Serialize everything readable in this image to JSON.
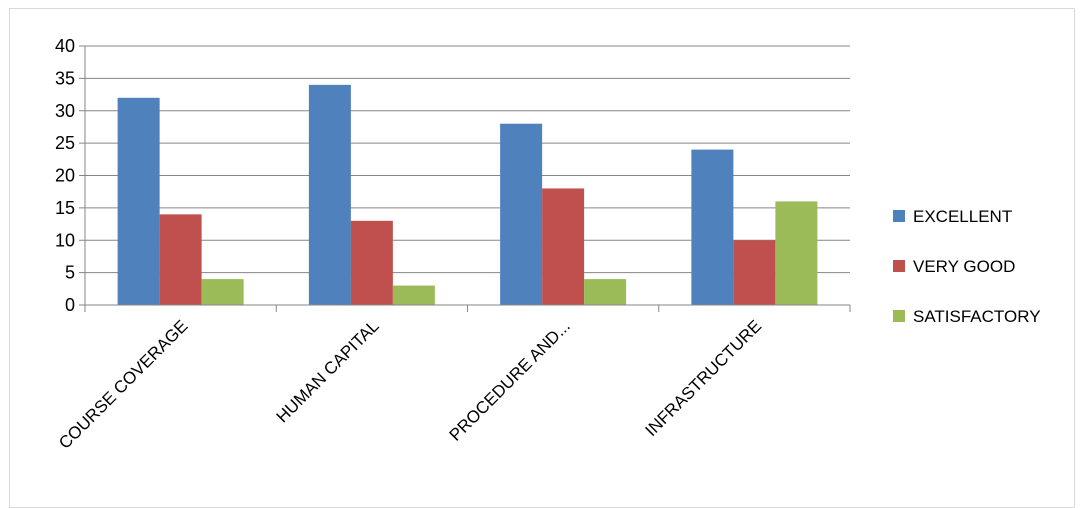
{
  "chart_data": {
    "type": "bar",
    "title": "",
    "xlabel": "",
    "ylabel": "",
    "categories": [
      "COURSE COVERAGE",
      "HUMAN CAPITAL",
      "PROCEDURE AND...",
      "INFRASTRUCTURE"
    ],
    "series": [
      {
        "name": "EXCELLENT",
        "color": "#4F81BD",
        "values": [
          32,
          34,
          28,
          24
        ]
      },
      {
        "name": "VERY GOOD",
        "color": "#C0504D",
        "values": [
          14,
          13,
          18,
          10
        ]
      },
      {
        "name": "SATISFACTORY",
        "color": "#9BBB59",
        "values": [
          4,
          3,
          4,
          16
        ]
      }
    ],
    "ylim": [
      0,
      40
    ],
    "yticks": [
      0,
      5,
      10,
      15,
      20,
      25,
      30,
      35,
      40
    ],
    "grid": true,
    "legend_position": "right"
  }
}
